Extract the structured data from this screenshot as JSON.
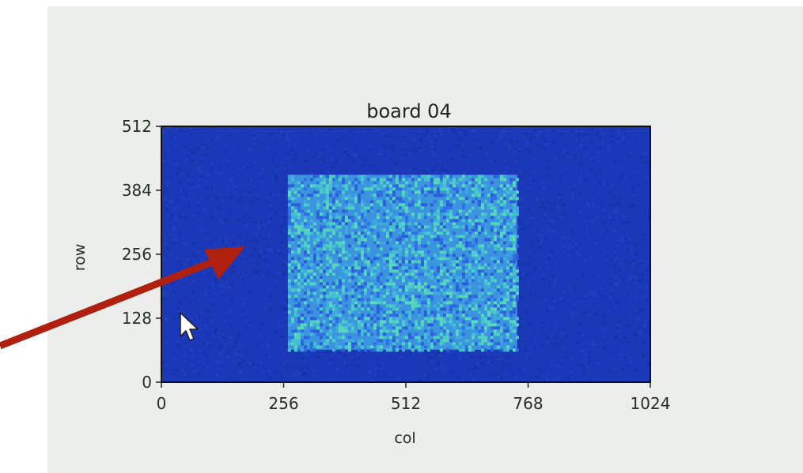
{
  "chart_data": {
    "type": "heatmap",
    "title": "board 04",
    "xlabel": "col",
    "ylabel": "row",
    "xlim": [
      0,
      1024
    ],
    "ylim": [
      0,
      512
    ],
    "x_ticks": [
      "0",
      "256",
      "512",
      "768",
      "1024"
    ],
    "y_ticks": [
      "0",
      "128",
      "256",
      "384",
      "512"
    ],
    "x_tick_values": [
      0,
      256,
      512,
      768,
      1024
    ],
    "y_tick_values": [
      0,
      128,
      256,
      384,
      512
    ],
    "hot_region": {
      "col": [
        265,
        745
      ],
      "row": [
        65,
        415
      ]
    },
    "colors": {
      "background": "#1a38b8",
      "hot_low": "#2f6fe6",
      "hot_high": "#4fd0c4",
      "frame": "#111111"
    }
  },
  "annotations": {
    "arrow_color": "#b0200f",
    "cursor_icon": "mouse-pointer-icon"
  }
}
